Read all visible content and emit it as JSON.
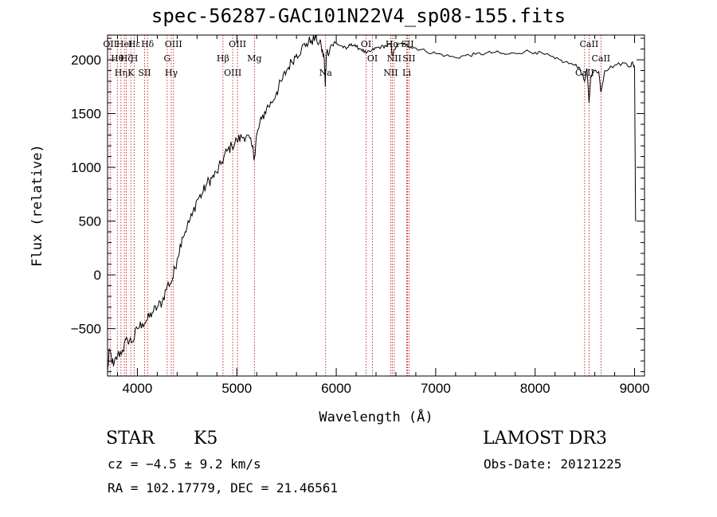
{
  "header": {
    "title": "spec-56287-GAC101N22V4_sp08-155.fits"
  },
  "info": {
    "object_class": "STAR",
    "subclass": "K5",
    "survey": "LAMOST DR3",
    "redshift": "cz = −4.5 ± 9.2 km/s",
    "obs_date": "Obs-Date: 20121225",
    "coords": "RA = 102.17779, DEC =  21.46561"
  },
  "colors": {
    "line": "#000000",
    "marker": "#c00000",
    "background": "#ffffff"
  },
  "chart_data": {
    "type": "line",
    "title": "spec-56287-GAC101N22V4_sp08-155.fits",
    "xlabel": "Wavelength (Å)",
    "ylabel": "Flux (relative)",
    "xlim": [
      3700,
      9100
    ],
    "ylim": [
      -940,
      2230
    ],
    "xticks": [
      4000,
      5000,
      6000,
      7000,
      8000,
      9000
    ],
    "xtick_labels": [
      "4000",
      "5000",
      "6000",
      "7000",
      "8000",
      "9000"
    ],
    "yticks": [
      -500,
      0,
      500,
      1000,
      1500,
      2000
    ],
    "ytick_labels": [
      "−500",
      "0",
      "500",
      "1000",
      "1500",
      "2000"
    ],
    "series": [
      {
        "name": "flux",
        "x": [
          3700,
          3720,
          3760,
          3800,
          3850,
          3900,
          3950,
          4000,
          4050,
          4100,
          4150,
          4200,
          4250,
          4300,
          4350,
          4400,
          4450,
          4500,
          4550,
          4600,
          4650,
          4700,
          4750,
          4800,
          4850,
          4900,
          4950,
          5000,
          5050,
          5100,
          5150,
          5180,
          5200,
          5250,
          5300,
          5350,
          5400,
          5450,
          5500,
          5550,
          5600,
          5650,
          5700,
          5750,
          5800,
          5850,
          5880,
          5890,
          5900,
          5950,
          6000,
          6050,
          6100,
          6150,
          6200,
          6250,
          6300,
          6350,
          6400,
          6450,
          6500,
          6550,
          6563,
          6600,
          6650,
          6700,
          6750,
          6800,
          6900,
          7000,
          7100,
          7200,
          7300,
          7400,
          7500,
          7600,
          7700,
          7800,
          7900,
          8000,
          8100,
          8200,
          8300,
          8400,
          8450,
          8498,
          8520,
          8542,
          8560,
          8600,
          8640,
          8662,
          8700,
          8800,
          8900,
          8960,
          8980,
          9000,
          9010
        ],
        "y": [
          -900,
          -700,
          -850,
          -750,
          -700,
          -600,
          -620,
          -500,
          -450,
          -420,
          -350,
          -300,
          -250,
          -100,
          -50,
          150,
          350,
          450,
          550,
          700,
          750,
          850,
          900,
          950,
          1050,
          1150,
          1200,
          1250,
          1280,
          1300,
          1200,
          1100,
          1300,
          1450,
          1550,
          1600,
          1700,
          1800,
          1900,
          1980,
          2050,
          2100,
          2150,
          2180,
          2200,
          2120,
          2000,
          1750,
          2050,
          2140,
          2150,
          2130,
          2100,
          2150,
          2120,
          2100,
          2060,
          2080,
          2110,
          2120,
          2130,
          2140,
          2040,
          2120,
          2150,
          2140,
          2120,
          2110,
          2080,
          2060,
          2040,
          2020,
          2040,
          2050,
          2060,
          2070,
          2050,
          2060,
          2080,
          2070,
          2050,
          2010,
          1980,
          1950,
          1920,
          1800,
          1920,
          1600,
          1850,
          1900,
          1890,
          1700,
          1900,
          1950,
          1970,
          1940,
          1980,
          1920,
          500
        ]
      }
    ],
    "line_markers": [
      {
        "x": 3726,
        "labels": [
          "OII"
        ]
      },
      {
        "x": 3798,
        "labels": [
          "Hθ"
        ]
      },
      {
        "x": 3835,
        "labels": [
          "Hη"
        ]
      },
      {
        "x": 3869,
        "labels": [
          "HeI"
        ]
      },
      {
        "x": 3889,
        "labels": [
          "Hζ"
        ]
      },
      {
        "x": 3934,
        "labels": [
          "K"
        ]
      },
      {
        "x": 3969,
        "labels": [
          "Hε",
          "H"
        ]
      },
      {
        "x": 4072,
        "labels": [
          "SII"
        ]
      },
      {
        "x": 4102,
        "labels": [
          "Hδ"
        ]
      },
      {
        "x": 4300,
        "labels": [
          "G"
        ]
      },
      {
        "x": 4341,
        "labels": [
          "Hγ"
        ]
      },
      {
        "x": 4363,
        "labels": [
          "OIII"
        ]
      },
      {
        "x": 4861,
        "labels": [
          "Hβ"
        ]
      },
      {
        "x": 4959,
        "labels": [
          "OIII"
        ]
      },
      {
        "x": 5007,
        "labels": [
          "OIII"
        ]
      },
      {
        "x": 5177,
        "labels": [
          "Mg"
        ]
      },
      {
        "x": 5893,
        "labels": [
          "Na"
        ]
      },
      {
        "x": 6300,
        "labels": [
          "OI"
        ]
      },
      {
        "x": 6364,
        "labels": [
          "OI"
        ]
      },
      {
        "x": 6548,
        "labels": [
          "NII"
        ]
      },
      {
        "x": 6563,
        "labels": [
          "Hα"
        ]
      },
      {
        "x": 6583,
        "labels": [
          "NII"
        ]
      },
      {
        "x": 6708,
        "labels": [
          "Li"
        ]
      },
      {
        "x": 6716,
        "labels": [
          "SII"
        ]
      },
      {
        "x": 6731,
        "labels": [
          "SII"
        ]
      },
      {
        "x": 8498,
        "labels": [
          "CaII"
        ]
      },
      {
        "x": 8542,
        "labels": [
          "CaII"
        ]
      },
      {
        "x": 8662,
        "labels": [
          "CaII"
        ]
      }
    ]
  }
}
